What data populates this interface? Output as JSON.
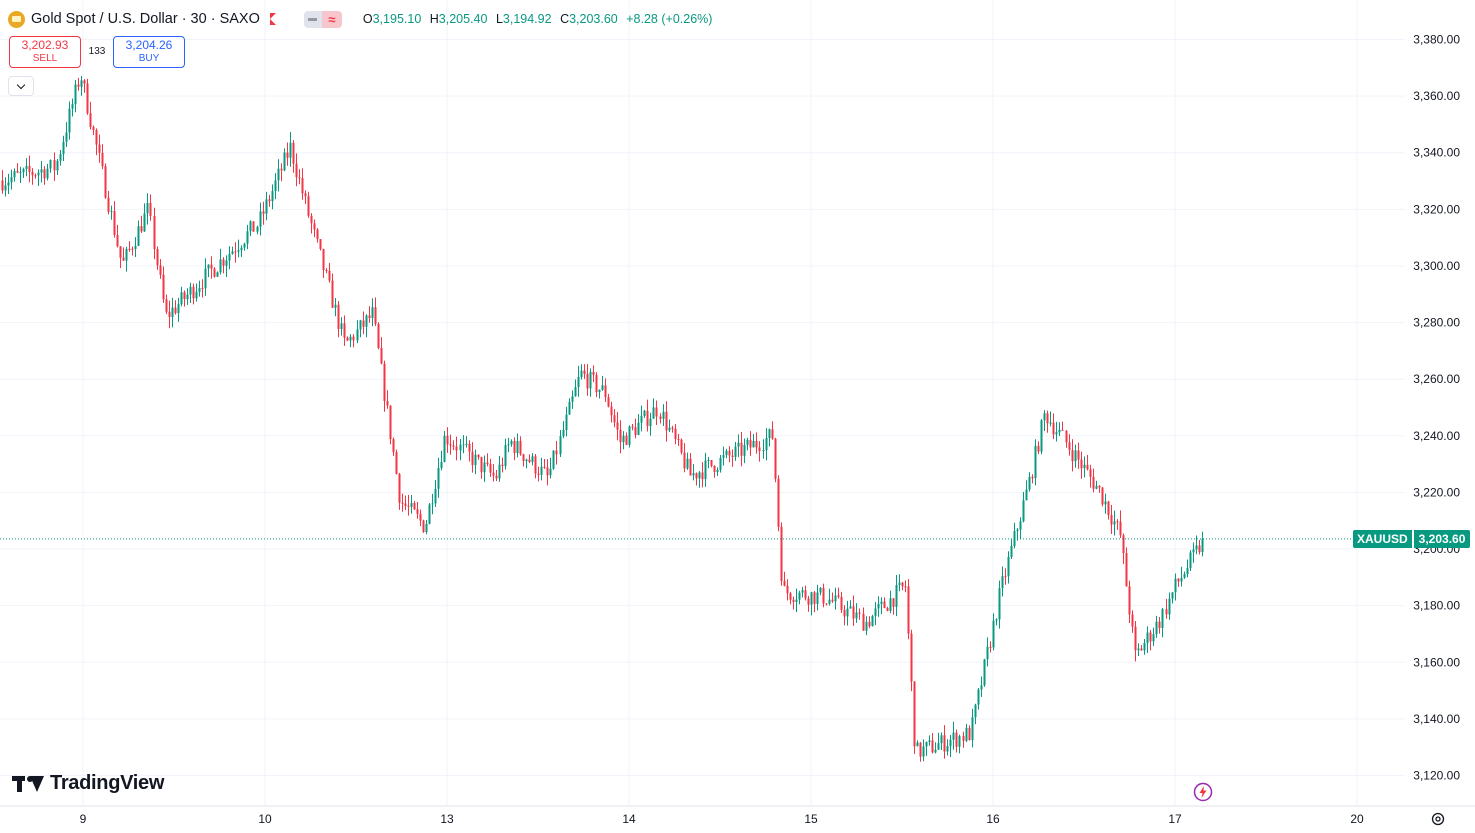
{
  "header": {
    "symbol_title": "Gold Spot / U.S. Dollar · 30 · SAXO",
    "ohlc": {
      "open_label": "O",
      "open": "3,195.10",
      "high_label": "H",
      "high": "3,205.40",
      "low_label": "L",
      "low": "3,194.92",
      "close_label": "C",
      "close": "3,203.60",
      "change": "+8.28 (+0.26%)"
    },
    "pill_icon": "wave-icon"
  },
  "trade": {
    "sell_price": "3,202.93",
    "sell_label": "SELL",
    "spread": "133",
    "buy_price": "3,204.26",
    "buy_label": "BUY"
  },
  "logo_text": "TradingView",
  "last_price": {
    "symbol": "XAUUSD",
    "value": "3,203.60"
  },
  "colors": {
    "up": "#089981",
    "down": "#f23645",
    "grid": "#f0f3fa",
    "text": "#131722"
  },
  "chart_data": {
    "type": "candlestick",
    "title": "Gold Spot / U.S. Dollar · 30 · SAXO",
    "y_ticks": [
      "3,380.00",
      "3,360.00",
      "3,340.00",
      "3,320.00",
      "3,300.00",
      "3,280.00",
      "3,260.00",
      "3,240.00",
      "3,220.00",
      "3,200.00",
      "3,180.00",
      "3,160.00",
      "3,140.00",
      "3,120.00"
    ],
    "y_tick_values": [
      3380,
      3360,
      3340,
      3320,
      3300,
      3280,
      3260,
      3240,
      3220,
      3200,
      3180,
      3160,
      3140,
      3120
    ],
    "x_ticks": [
      "9",
      "10",
      "13",
      "14",
      "15",
      "16",
      "17",
      "20"
    ],
    "ylim": [
      3113.2,
      3394
    ],
    "grid": true,
    "last_price": 3203.6,
    "close_path_anchors": [
      {
        "x": "9",
        "close": 3335
      },
      {
        "x": "9",
        "close": 3368
      },
      {
        "x": "9",
        "close": 3300
      },
      {
        "x": "9",
        "close": 3320
      },
      {
        "x": "9",
        "close": 3282
      },
      {
        "x": "9",
        "close": 3315
      },
      {
        "x": "10",
        "close": 3342
      },
      {
        "x": "10",
        "close": 3322
      },
      {
        "x": "10",
        "close": 3272
      },
      {
        "x": "10",
        "close": 3283
      },
      {
        "x": "10",
        "close": 3217
      },
      {
        "x": "10",
        "close": 3208
      },
      {
        "x": "13",
        "close": 3240
      },
      {
        "x": "13",
        "close": 3225
      },
      {
        "x": "13",
        "close": 3238
      },
      {
        "x": "13",
        "close": 3225
      },
      {
        "x": "13",
        "close": 3262
      },
      {
        "x": "13",
        "close": 3255
      },
      {
        "x": "14",
        "close": 3238
      },
      {
        "x": "14",
        "close": 3250
      },
      {
        "x": "14",
        "close": 3226
      },
      {
        "x": "14",
        "close": 3240
      },
      {
        "x": "14",
        "close": 3185
      },
      {
        "x": "15",
        "close": 3183
      },
      {
        "x": "15",
        "close": 3174
      },
      {
        "x": "15",
        "close": 3187
      },
      {
        "x": "15",
        "close": 3128
      },
      {
        "x": "15",
        "close": 3135
      },
      {
        "x": "15",
        "close": 3185
      },
      {
        "x": "16",
        "close": 3225
      },
      {
        "x": "16",
        "close": 3248
      },
      {
        "x": "16",
        "close": 3220
      },
      {
        "x": "16",
        "close": 3205
      },
      {
        "x": "16",
        "close": 3162
      },
      {
        "x": "17",
        "close": 3175
      },
      {
        "x": "17",
        "close": 3187
      },
      {
        "x": "17",
        "close": 3203.6
      }
    ]
  }
}
